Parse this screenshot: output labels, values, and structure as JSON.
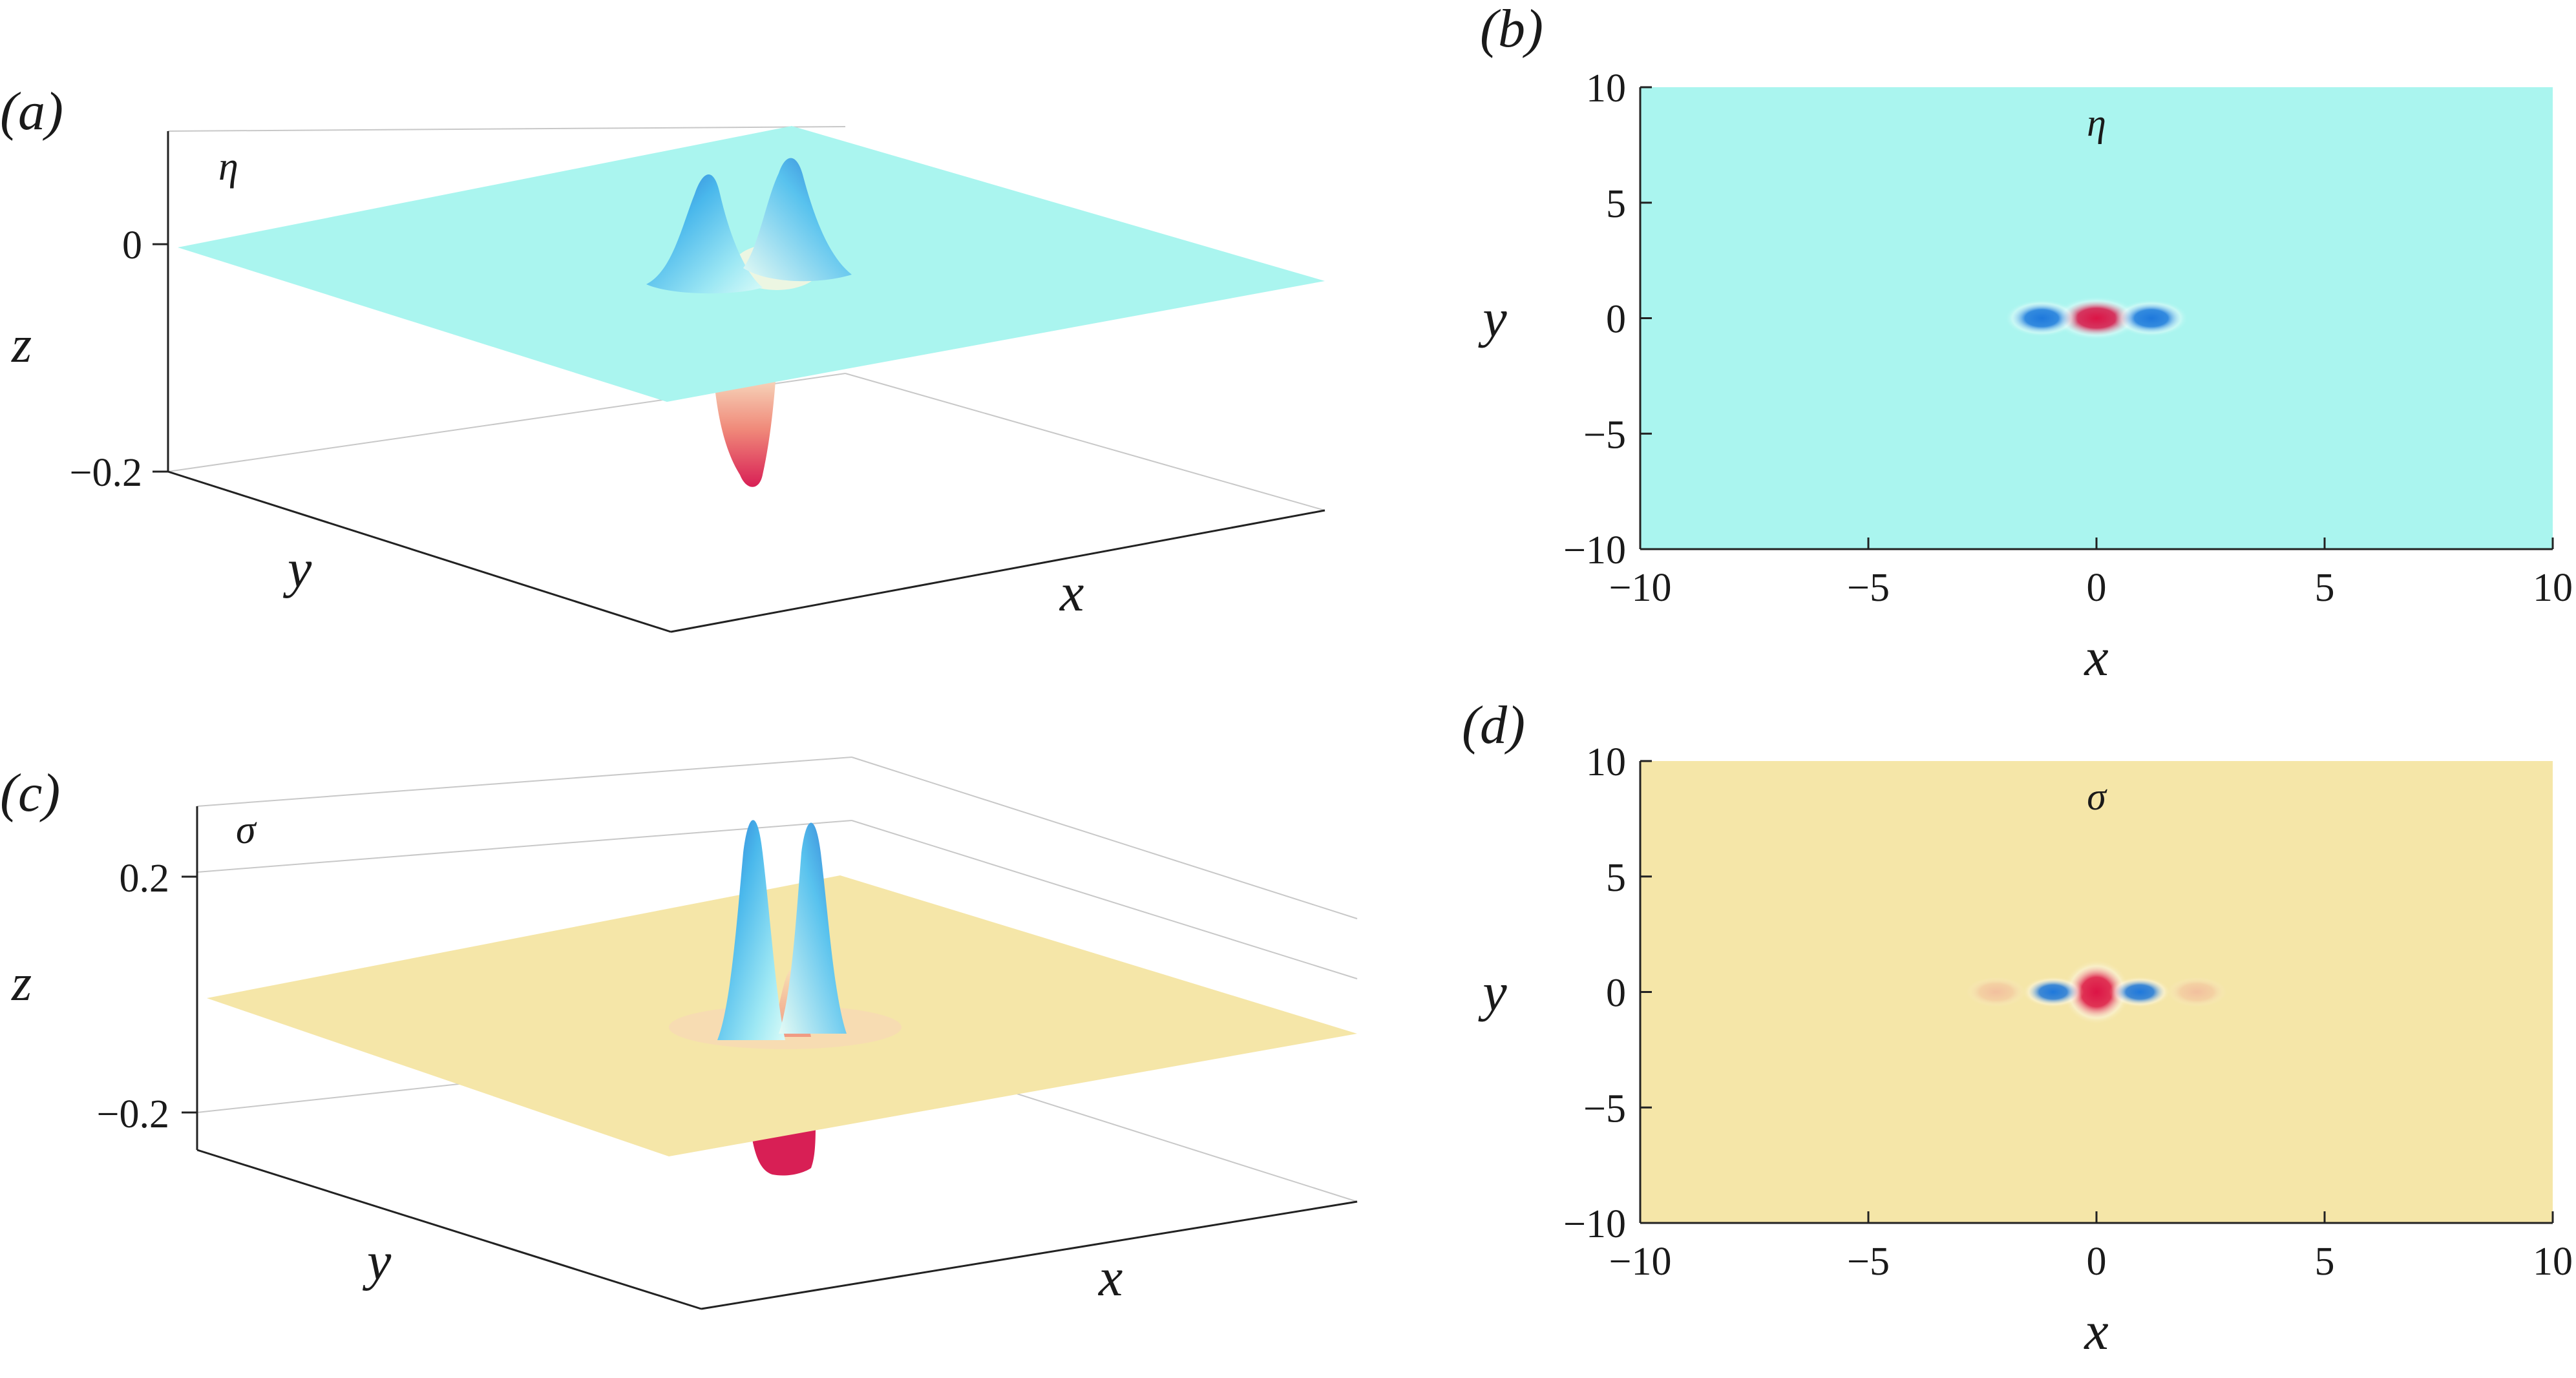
{
  "chart_data": [
    {
      "panel": "(a)",
      "type": "surface",
      "field_label": "η",
      "zlabel": "z",
      "xlabel": "x",
      "ylabel": "y",
      "z_ticks": [
        "0",
        "−0.2"
      ],
      "base_color": "#aaf5ef",
      "features": [
        {
          "kind": "peak",
          "x": -1.2,
          "y": 0,
          "z": 0.09
        },
        {
          "kind": "peak",
          "x": 1.2,
          "y": 0,
          "z": 0.09
        },
        {
          "kind": "trough",
          "x": 0,
          "y": 0,
          "z": -0.21
        }
      ]
    },
    {
      "panel": "(b)",
      "type": "heatmap",
      "field_label": "η",
      "xlabel": "x",
      "ylabel": "y",
      "xlim": [
        -10,
        10
      ],
      "ylim": [
        -10,
        10
      ],
      "x_ticks": [
        "−10",
        "−5",
        "0",
        "5",
        "10"
      ],
      "y_ticks": [
        "10",
        "5",
        "0",
        "−5",
        "−10"
      ],
      "background_color": "#aaf5ef",
      "blobs": [
        {
          "x": 0,
          "y": 0,
          "sign": "positive",
          "color": "#dc1446",
          "radius": 0.7
        },
        {
          "x": -1.2,
          "y": 0,
          "sign": "negative",
          "color": "#1e78dc",
          "radius": 0.6
        },
        {
          "x": 1.2,
          "y": 0,
          "sign": "negative",
          "color": "#1e78dc",
          "radius": 0.6
        }
      ]
    },
    {
      "panel": "(c)",
      "type": "surface",
      "field_label": "σ",
      "zlabel": "z",
      "xlabel": "x",
      "ylabel": "y",
      "z_ticks": [
        "0.2",
        "−0.2"
      ],
      "base_color": "#f5e6a8",
      "features": [
        {
          "kind": "peak",
          "x": -0.9,
          "y": 0,
          "z": 0.3
        },
        {
          "kind": "peak",
          "x": 0.9,
          "y": 0,
          "z": 0.3
        },
        {
          "kind": "trough",
          "x": 0,
          "y": 0,
          "z": -0.27
        }
      ]
    },
    {
      "panel": "(d)",
      "type": "heatmap",
      "field_label": "σ",
      "xlabel": "x",
      "ylabel": "y",
      "xlim": [
        -10,
        10
      ],
      "ylim": [
        -10,
        10
      ],
      "x_ticks": [
        "−10",
        "−5",
        "0",
        "5",
        "10"
      ],
      "y_ticks": [
        "10",
        "5",
        "0",
        "−5",
        "−10"
      ],
      "background_color": "#f5e6a8",
      "blobs": [
        {
          "x": 0,
          "y": 0,
          "sign": "positive",
          "color": "#dc1446",
          "radius": 0.55,
          "stretch_y": 1.9
        },
        {
          "x": -0.95,
          "y": 0,
          "sign": "negative",
          "color": "#1e78dc",
          "radius": 0.5
        },
        {
          "x": 0.95,
          "y": 0,
          "sign": "negative",
          "color": "#1e78dc",
          "radius": 0.5
        },
        {
          "x": -2.2,
          "y": 0,
          "sign": "weak-positive",
          "color": "#f0a096",
          "radius": 0.6
        },
        {
          "x": 2.2,
          "y": 0,
          "sign": "weak-positive",
          "color": "#f0a096",
          "radius": 0.6
        }
      ]
    }
  ]
}
